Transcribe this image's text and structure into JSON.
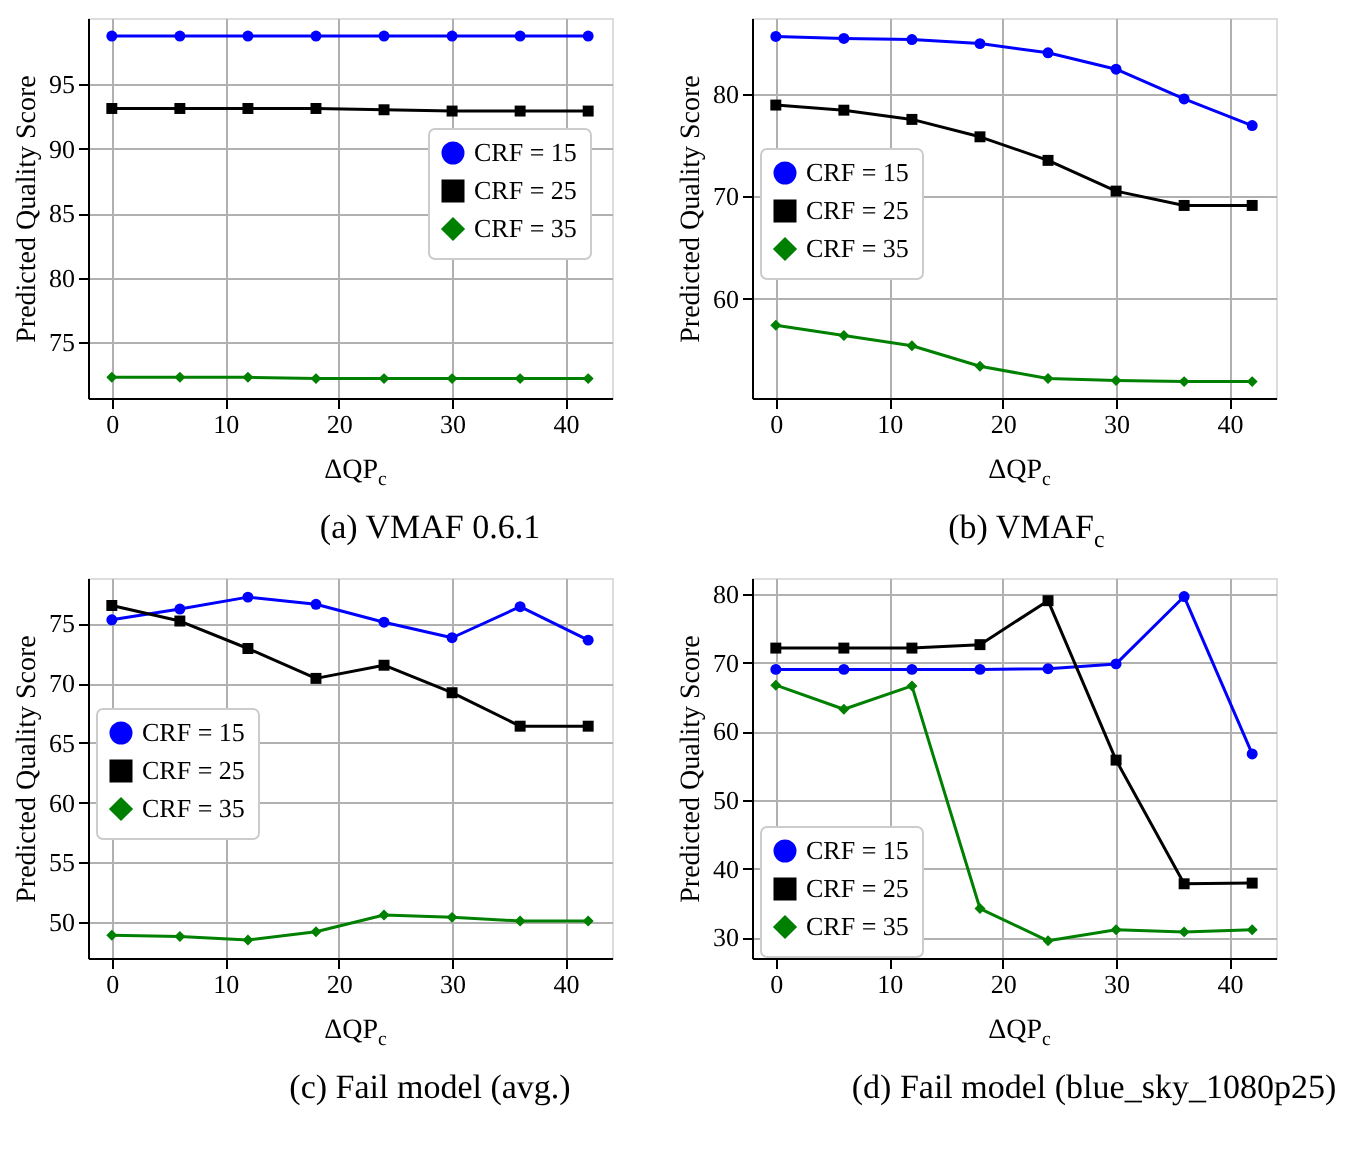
{
  "chart_data": [
    {
      "type": "line",
      "title": "(a) VMAF 0.6.1",
      "xlabel": "ΔQP$_{c}$",
      "ylabel": "Predicted Quality Score",
      "x": [
        0,
        6,
        12,
        18,
        24,
        30,
        36,
        42
      ],
      "xlim": [
        -2.1,
        44.1
      ],
      "xticks": [
        0,
        10,
        20,
        30,
        40
      ],
      "ylim": [
        70.7,
        100.1
      ],
      "yticks": [
        75,
        80,
        85,
        90,
        95
      ],
      "grid": true,
      "legend": "right",
      "series": [
        {
          "name": "CRF = 15",
          "color": "#0000ff",
          "marker": "circle",
          "values": [
            98.7,
            98.7,
            98.7,
            98.7,
            98.7,
            98.7,
            98.7,
            98.7
          ]
        },
        {
          "name": "CRF = 25",
          "color": "#000000",
          "marker": "square",
          "values": [
            93.1,
            93.1,
            93.1,
            93.1,
            93.0,
            92.9,
            92.9,
            92.9
          ]
        },
        {
          "name": "CRF = 35",
          "color": "#008000",
          "marker": "diamond",
          "values": [
            72.3,
            72.3,
            72.3,
            72.2,
            72.2,
            72.2,
            72.2,
            72.2
          ]
        }
      ]
    },
    {
      "type": "line",
      "title": "(b) VMAF$_{c}$",
      "xlabel": "ΔQP$_{c}$",
      "ylabel": "Predicted Quality Score",
      "x": [
        0,
        6,
        12,
        18,
        24,
        30,
        36,
        42
      ],
      "xlim": [
        -2.1,
        44.1
      ],
      "xticks": [
        0,
        10,
        20,
        30,
        40
      ],
      "ylim": [
        50.3,
        87.4
      ],
      "yticks": [
        60,
        70,
        80
      ],
      "grid": true,
      "legend": "left",
      "series": [
        {
          "name": "CRF = 15",
          "color": "#0000ff",
          "marker": "circle",
          "values": [
            85.6,
            85.4,
            85.3,
            84.9,
            84.0,
            82.4,
            79.5,
            76.9
          ]
        },
        {
          "name": "CRF = 25",
          "color": "#000000",
          "marker": "square",
          "values": [
            78.9,
            78.4,
            77.5,
            75.8,
            73.5,
            70.5,
            69.1,
            69.1
          ]
        },
        {
          "name": "CRF = 35",
          "color": "#008000",
          "marker": "diamond",
          "values": [
            57.4,
            56.4,
            55.4,
            53.4,
            52.2,
            52.0,
            51.9,
            51.9
          ]
        }
      ]
    },
    {
      "type": "line",
      "title": "(c) Fail model (avg.)",
      "xlabel": "ΔQP$_{c}$",
      "ylabel": "Predicted Quality Score",
      "x": [
        0,
        6,
        12,
        18,
        24,
        30,
        36,
        42
      ],
      "xlim": [
        -2.1,
        44.1
      ],
      "xticks": [
        0,
        10,
        20,
        30,
        40
      ],
      "ylim": [
        47.0,
        78.8
      ],
      "yticks": [
        50,
        55,
        60,
        65,
        70,
        75
      ],
      "grid": true,
      "legend": "left",
      "series": [
        {
          "name": "CRF = 15",
          "color": "#0000ff",
          "marker": "circle",
          "values": [
            75.3,
            76.2,
            77.2,
            76.6,
            75.1,
            73.8,
            76.4,
            73.6
          ]
        },
        {
          "name": "CRF = 25",
          "color": "#000000",
          "marker": "square",
          "values": [
            76.5,
            75.2,
            72.9,
            70.4,
            71.5,
            69.2,
            66.4,
            66.4
          ]
        },
        {
          "name": "CRF = 35",
          "color": "#008000",
          "marker": "diamond",
          "values": [
            48.9,
            48.8,
            48.5,
            49.2,
            50.6,
            50.4,
            50.1,
            50.1
          ]
        }
      ]
    },
    {
      "type": "line",
      "title": "(d) Fail model (blue_sky_1080p25)",
      "xlabel": "ΔQP$_{c}$",
      "ylabel": "Predicted Quality Score",
      "x": [
        0,
        6,
        12,
        18,
        24,
        30,
        36,
        42
      ],
      "xlim": [
        -2.1,
        44.1
      ],
      "xticks": [
        0,
        10,
        20,
        30,
        40
      ],
      "ylim": [
        27.0,
        82.3
      ],
      "yticks": [
        30,
        40,
        50,
        60,
        70,
        80
      ],
      "grid": true,
      "legend": "bottom left",
      "series": [
        {
          "name": "CRF = 15",
          "color": "#0000ff",
          "marker": "circle",
          "values": [
            69.0,
            69.0,
            69.0,
            69.0,
            69.1,
            69.8,
            79.6,
            56.7
          ]
        },
        {
          "name": "CRF = 25",
          "color": "#000000",
          "marker": "square",
          "values": [
            72.1,
            72.1,
            72.1,
            72.6,
            79.0,
            55.8,
            37.8,
            37.9
          ]
        },
        {
          "name": "CRF = 35",
          "color": "#008000",
          "marker": "diamond",
          "values": [
            66.7,
            63.2,
            66.6,
            34.2,
            29.5,
            31.1,
            30.8,
            31.1
          ]
        }
      ]
    }
  ]
}
